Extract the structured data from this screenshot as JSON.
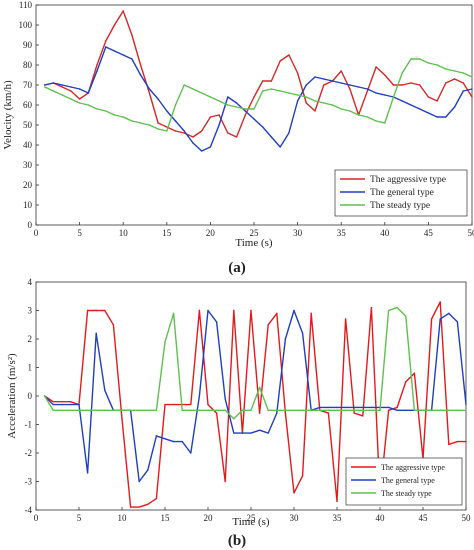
{
  "chart_data": [
    {
      "type": "line",
      "panel_label": "(a)",
      "xlabel": "Time (s)",
      "ylabel": "Velocity (km/h)",
      "xlim": [
        0,
        50
      ],
      "ylim": [
        0,
        110
      ],
      "xticks": [
        0,
        5,
        10,
        15,
        20,
        25,
        30,
        35,
        40,
        45,
        50
      ],
      "yticks": [
        0,
        10,
        20,
        30,
        40,
        50,
        60,
        70,
        80,
        90,
        100,
        110
      ],
      "grid": false,
      "legend_position": "lower-right",
      "series": [
        {
          "name": "The aggressive type",
          "color": "#d62728",
          "x": [
            1,
            2,
            3,
            4,
            5,
            6,
            7,
            8,
            9,
            10,
            11,
            12,
            13,
            14,
            15,
            16,
            17,
            18,
            19,
            20,
            21,
            22,
            23,
            24,
            25,
            26,
            27,
            28,
            29,
            30,
            31,
            32,
            33,
            34,
            35,
            36,
            37,
            38,
            39,
            40,
            41,
            42,
            43,
            44,
            45,
            46,
            47,
            48,
            49,
            50
          ],
          "y": [
            70,
            71,
            69,
            67,
            63,
            66,
            80,
            92,
            100,
            107,
            95,
            80,
            66,
            51,
            49,
            47,
            46,
            44,
            47,
            54,
            55,
            46,
            44,
            55,
            64,
            72,
            72,
            82,
            85,
            76,
            61,
            57,
            70,
            72,
            77,
            68,
            55,
            67,
            79,
            75,
            70,
            70,
            71,
            70,
            64,
            62,
            71,
            73,
            71,
            64
          ]
        },
        {
          "name": "The general type",
          "color": "#1f3fbf",
          "x": [
            1,
            2,
            3,
            4,
            5,
            6,
            7,
            8,
            9,
            10,
            11,
            12,
            13,
            14,
            15,
            16,
            17,
            18,
            19,
            20,
            21,
            22,
            23,
            24,
            25,
            26,
            27,
            28,
            29,
            30,
            31,
            32,
            33,
            34,
            35,
            36,
            37,
            38,
            39,
            40,
            41,
            42,
            43,
            44,
            45,
            46,
            47,
            48,
            49,
            50
          ],
          "y": [
            70,
            71,
            70,
            69,
            68,
            66,
            77,
            89,
            87,
            85,
            83,
            75,
            68,
            63,
            57,
            52,
            47,
            41,
            37,
            39,
            50,
            64,
            61,
            57,
            53,
            49,
            44,
            39,
            46,
            62,
            70,
            74,
            73,
            72,
            71,
            70,
            69,
            68,
            66,
            65,
            64,
            62,
            60,
            58,
            56,
            54,
            54,
            59,
            67,
            68
          ]
        },
        {
          "name": "The steady type",
          "color": "#5fbf4f",
          "x": [
            1,
            2,
            3,
            4,
            5,
            6,
            7,
            8,
            9,
            10,
            11,
            12,
            13,
            14,
            15,
            16,
            17,
            18,
            19,
            20,
            21,
            22,
            23,
            24,
            25,
            26,
            27,
            28,
            29,
            30,
            31,
            32,
            33,
            34,
            35,
            36,
            37,
            38,
            39,
            40,
            41,
            42,
            43,
            44,
            45,
            46,
            47,
            48,
            49,
            50
          ],
          "y": [
            69,
            67,
            65,
            63,
            61,
            60,
            58,
            57,
            55,
            54,
            52,
            51,
            50,
            48,
            47,
            60,
            70,
            68,
            66,
            64,
            62,
            60,
            59,
            58,
            58,
            67,
            68,
            67,
            66,
            65,
            64,
            62,
            61,
            60,
            58,
            57,
            55,
            54,
            52,
            51,
            64,
            76,
            83,
            83,
            81,
            80,
            78,
            77,
            76,
            74
          ]
        }
      ]
    },
    {
      "type": "line",
      "panel_label": "(b)",
      "xlabel": "Time (s)",
      "ylabel": "Acceleration (m/s²)",
      "xlim": [
        0,
        50
      ],
      "ylim": [
        -4,
        4
      ],
      "xticks": [
        0,
        5,
        10,
        15,
        20,
        25,
        30,
        35,
        40,
        45,
        50
      ],
      "yticks": [
        -4,
        -3,
        -2,
        -1,
        0,
        1,
        2,
        3,
        4
      ],
      "grid": false,
      "legend_position": "lower-right",
      "series": [
        {
          "name": "The aggressive type",
          "color": "#e31a1c",
          "x": [
            1,
            2,
            3,
            4,
            5,
            6,
            7,
            8,
            9,
            10,
            11,
            12,
            13,
            14,
            15,
            16,
            17,
            18,
            19,
            20,
            21,
            22,
            23,
            24,
            25,
            26,
            27,
            28,
            29,
            30,
            31,
            32,
            33,
            34,
            35,
            36,
            37,
            38,
            39,
            40,
            41,
            42,
            43,
            44,
            45,
            46,
            47,
            48,
            49,
            50
          ],
          "y": [
            0,
            -0.2,
            -0.2,
            -0.2,
            -0.3,
            3.0,
            3.0,
            3.0,
            2.5,
            -0.8,
            -3.9,
            -3.9,
            -3.8,
            -3.6,
            -0.3,
            -0.3,
            -0.3,
            -0.3,
            3.0,
            -0.3,
            -0.6,
            -3.0,
            3.0,
            -1.3,
            3.0,
            -0.6,
            2.5,
            2.9,
            -0.6,
            -3.4,
            -2.8,
            2.9,
            -0.5,
            -0.6,
            -3.7,
            2.7,
            -0.6,
            -0.7,
            3.1,
            -3.5,
            -0.5,
            -0.4,
            0.5,
            0.8,
            -2.2,
            2.7,
            3.3,
            -1.7,
            -1.6,
            -1.6
          ]
        },
        {
          "name": "The general type",
          "color": "#1f3fbf",
          "x": [
            1,
            2,
            3,
            4,
            5,
            6,
            7,
            8,
            9,
            10,
            11,
            12,
            13,
            14,
            15,
            16,
            17,
            18,
            19,
            20,
            21,
            22,
            23,
            24,
            25,
            26,
            27,
            28,
            29,
            30,
            31,
            32,
            33,
            34,
            35,
            36,
            37,
            38,
            39,
            40,
            41,
            42,
            43,
            44,
            45,
            46,
            47,
            48,
            49,
            50
          ],
          "y": [
            0,
            -0.3,
            -0.3,
            -0.3,
            -0.3,
            -2.7,
            2.2,
            0.2,
            -0.5,
            -0.5,
            -0.5,
            -3.0,
            -2.6,
            -1.4,
            -1.5,
            -1.6,
            -1.6,
            -2.0,
            0.0,
            3.0,
            2.6,
            -0.1,
            -1.3,
            -1.3,
            -1.3,
            -1.2,
            -1.3,
            -0.6,
            2.0,
            3.0,
            2.2,
            -0.5,
            -0.4,
            -0.4,
            -0.4,
            -0.4,
            -0.4,
            -0.4,
            -0.4,
            -0.4,
            -0.4,
            -0.5,
            -0.5,
            -0.5,
            -0.5,
            -0.5,
            2.7,
            2.9,
            2.6,
            -0.3
          ]
        },
        {
          "name": "The steady type",
          "color": "#5fbf4f",
          "x": [
            1,
            2,
            3,
            4,
            5,
            6,
            7,
            8,
            9,
            10,
            11,
            12,
            13,
            14,
            15,
            16,
            17,
            18,
            19,
            20,
            21,
            22,
            23,
            24,
            25,
            26,
            27,
            28,
            29,
            30,
            31,
            32,
            33,
            34,
            35,
            36,
            37,
            38,
            39,
            40,
            41,
            42,
            43,
            44,
            45,
            46,
            47,
            48,
            49,
            50
          ],
          "y": [
            0,
            -0.5,
            -0.5,
            -0.5,
            -0.5,
            -0.5,
            -0.5,
            -0.5,
            -0.5,
            -0.5,
            -0.5,
            -0.5,
            -0.5,
            -0.5,
            1.9,
            2.9,
            -0.5,
            -0.5,
            -0.5,
            -0.5,
            -0.5,
            -0.5,
            -0.8,
            -0.5,
            -0.5,
            0.3,
            -0.5,
            -0.5,
            -0.5,
            -0.5,
            -0.5,
            -0.5,
            -0.5,
            -0.5,
            -0.5,
            -0.5,
            -0.5,
            -0.5,
            -0.5,
            -0.5,
            3.0,
            3.1,
            2.8,
            -0.5,
            -0.5,
            -0.5,
            -0.5,
            -0.5,
            -0.5,
            -0.5
          ]
        }
      ]
    }
  ]
}
